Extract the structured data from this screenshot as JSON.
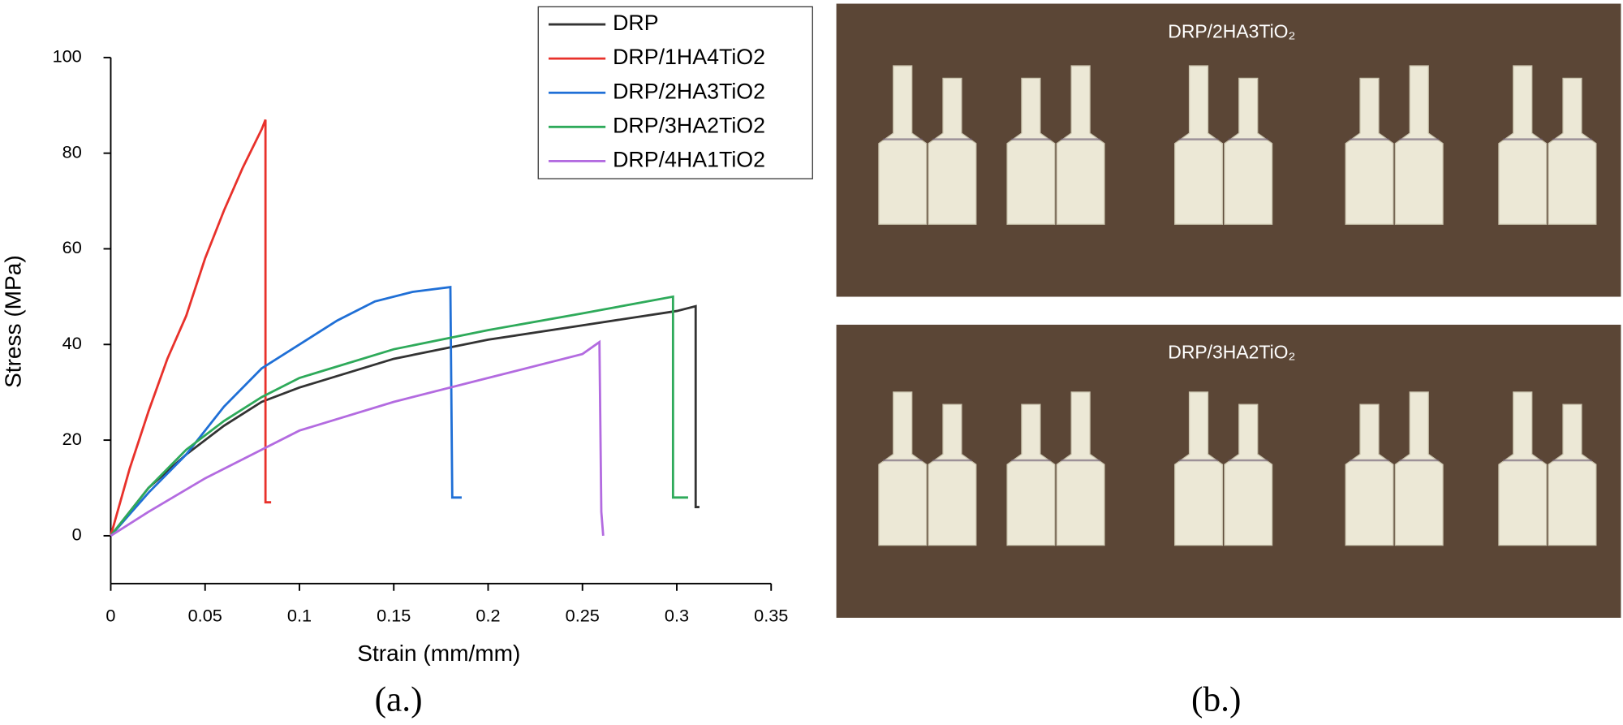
{
  "chart_data": {
    "type": "line",
    "xlabel": "Strain (mm/mm)",
    "ylabel": "Stress (MPa)",
    "xlim": [
      0,
      0.35
    ],
    "xticks": [
      0,
      0.05,
      0.1,
      0.15,
      0.2,
      0.25,
      0.3,
      0.35
    ],
    "ylim": [
      -10,
      100
    ],
    "yticks": [
      0,
      20,
      40,
      60,
      80,
      100
    ],
    "grid": false,
    "legend": "top-right",
    "series": [
      {
        "name": "DRP",
        "color": "#333333",
        "x": [
          0,
          0.02,
          0.04,
          0.06,
          0.08,
          0.1,
          0.15,
          0.2,
          0.25,
          0.3,
          0.31,
          0.31,
          0.312
        ],
        "values": [
          0,
          10,
          17,
          23,
          28,
          31,
          37,
          41,
          44,
          47,
          48,
          6,
          6
        ]
      },
      {
        "name": "DRP/1HA4TiO2",
        "color": "#e8312b",
        "x": [
          0,
          0.01,
          0.02,
          0.03,
          0.04,
          0.05,
          0.06,
          0.07,
          0.08,
          0.082,
          0.082,
          0.085
        ],
        "values": [
          0,
          14,
          26,
          37,
          46,
          58,
          68,
          77,
          85,
          87,
          7,
          7
        ]
      },
      {
        "name": "DRP/2HA3TiO2",
        "color": "#1f6fd6",
        "x": [
          0,
          0.02,
          0.04,
          0.06,
          0.08,
          0.1,
          0.12,
          0.14,
          0.16,
          0.18,
          0.181,
          0.186
        ],
        "values": [
          0,
          9,
          17,
          27,
          35,
          40,
          45,
          49,
          51,
          52,
          8,
          8
        ]
      },
      {
        "name": "DRP/3HA2TiO2",
        "color": "#2eaa5a",
        "x": [
          0,
          0.02,
          0.04,
          0.06,
          0.08,
          0.1,
          0.15,
          0.2,
          0.25,
          0.298,
          0.298,
          0.306
        ],
        "values": [
          0,
          10,
          18,
          24,
          29,
          33,
          39,
          43,
          46.5,
          50,
          8,
          8
        ]
      },
      {
        "name": "DRP/4HA1TiO2",
        "color": "#b36be0",
        "x": [
          0,
          0.02,
          0.05,
          0.08,
          0.1,
          0.15,
          0.2,
          0.25,
          0.259,
          0.26,
          0.261
        ],
        "values": [
          0,
          5,
          12,
          18,
          22,
          28,
          33,
          38,
          40.5,
          5,
          0
        ]
      }
    ]
  },
  "photos": [
    {
      "label": "DRP/2HA3TiO₂"
    },
    {
      "label": "DRP/3HA2TiO₂"
    }
  ],
  "captions": [
    "(a.)",
    "(b.)"
  ]
}
